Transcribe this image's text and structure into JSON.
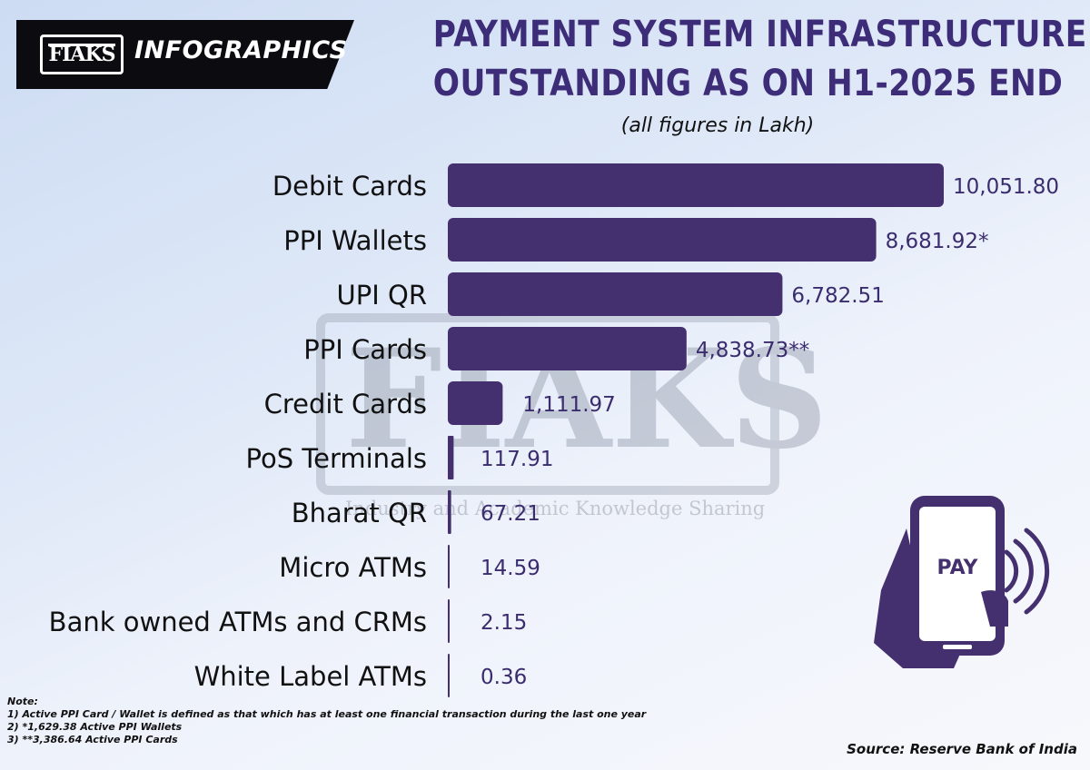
{
  "header": {
    "logo_text": "FIAKS",
    "brand_label": "INFOGRAPHICS",
    "title_line1": "PAYMENT SYSTEM INFRASTRUCTURE",
    "title_line2": "OUTSTANDING AS ON H1-2025 END",
    "subtitle": "(all figures in Lakh)"
  },
  "watermark": {
    "letters": "FIAKS",
    "tagline": "Industry and Academic Knowledge Sharing"
  },
  "colors": {
    "bar": "#45306f",
    "title": "#3d2c78",
    "value_label": "#3a2c6e",
    "category_label": "#111111"
  },
  "icon": {
    "name": "pay-phone-icon",
    "label": "PAY"
  },
  "chart_data": {
    "type": "bar",
    "orientation": "horizontal",
    "title": "PAYMENT SYSTEM INFRASTRUCTURE OUTSTANDING AS ON H1-2025 END",
    "subtitle": "(all figures in Lakh)",
    "categories": [
      "Debit Cards",
      "PPI Wallets",
      "UPI QR",
      "PPI Cards",
      "Credit Cards",
      "PoS Terminals",
      "Bharat QR",
      "Micro ATMs",
      "Bank owned ATMs and CRMs",
      "White Label ATMs"
    ],
    "values": [
      10051.8,
      8681.92,
      6782.51,
      4838.73,
      1111.97,
      117.91,
      67.21,
      14.59,
      2.15,
      0.36
    ],
    "value_labels": [
      "10,051.80",
      "8,681.92*",
      "6,782.51",
      "4,838.73**",
      "1,111.97",
      "117.91",
      "67.21",
      "14.59",
      "2.15",
      "0.36"
    ],
    "xlabel": "",
    "ylabel": "",
    "xlim": [
      0,
      10051.8
    ],
    "grid": false,
    "legend": "none"
  },
  "footnotes": {
    "heading": "Note:",
    "items": [
      "1) Active PPI Card / Wallet is defined as that which has at least one financial transaction during the last one year",
      "2) *1,629.38 Active PPI Wallets",
      "3) **3,386.64 Active PPI Cards"
    ]
  },
  "source": "Source: Reserve Bank of India"
}
